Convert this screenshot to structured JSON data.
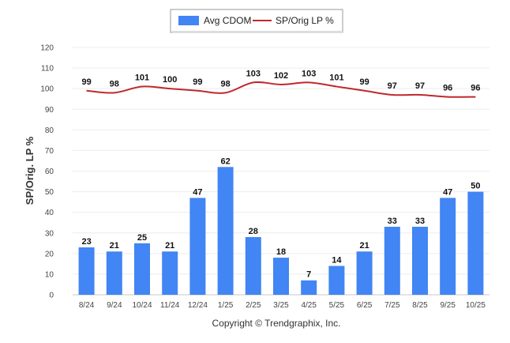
{
  "chart_data": {
    "type": "bar",
    "categories": [
      "8/24",
      "9/24",
      "10/24",
      "11/24",
      "12/24",
      "1/25",
      "2/25",
      "3/25",
      "4/25",
      "5/25",
      "6/25",
      "7/25",
      "8/25",
      "9/25",
      "10/25"
    ],
    "series": [
      {
        "name": "Avg CDOM",
        "type": "bar",
        "color": "#4285f4",
        "values": [
          23,
          21,
          25,
          21,
          47,
          62,
          28,
          18,
          7,
          14,
          21,
          33,
          33,
          47,
          50
        ]
      },
      {
        "name": "SP/Orig LP %",
        "type": "line",
        "color": "#c0282d",
        "values": [
          99,
          98,
          101,
          100,
          99,
          98,
          103,
          102,
          103,
          101,
          99,
          97,
          97,
          96,
          96
        ]
      }
    ],
    "ylabel": "SP/Orig. LP %",
    "ylim": [
      0,
      120
    ],
    "yticks": [
      0,
      10,
      20,
      30,
      40,
      50,
      60,
      70,
      80,
      90,
      100,
      110,
      120
    ],
    "grid": true,
    "legend": "top-center"
  },
  "footer": "Copyright © Trendgraphix, Inc."
}
